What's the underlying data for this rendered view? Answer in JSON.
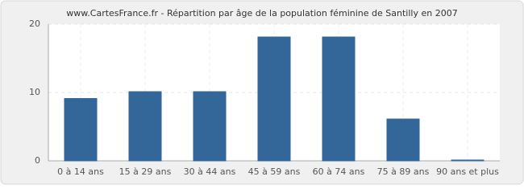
{
  "chart_data": {
    "type": "bar",
    "title": "www.CartesFrance.fr - Répartition par âge de la population féminine de Santilly en 2007",
    "categories": [
      "0 à 14 ans",
      "15 à 29 ans",
      "30 à 44 ans",
      "45 à 59 ans",
      "60 à 74 ans",
      "75 à 89 ans",
      "90 ans et plus"
    ],
    "values": [
      9,
      10,
      10,
      18,
      18,
      6,
      0
    ],
    "color": "#336699",
    "ylim": [
      0,
      20
    ],
    "yticks": [
      0,
      10,
      20
    ],
    "grid": true
  }
}
